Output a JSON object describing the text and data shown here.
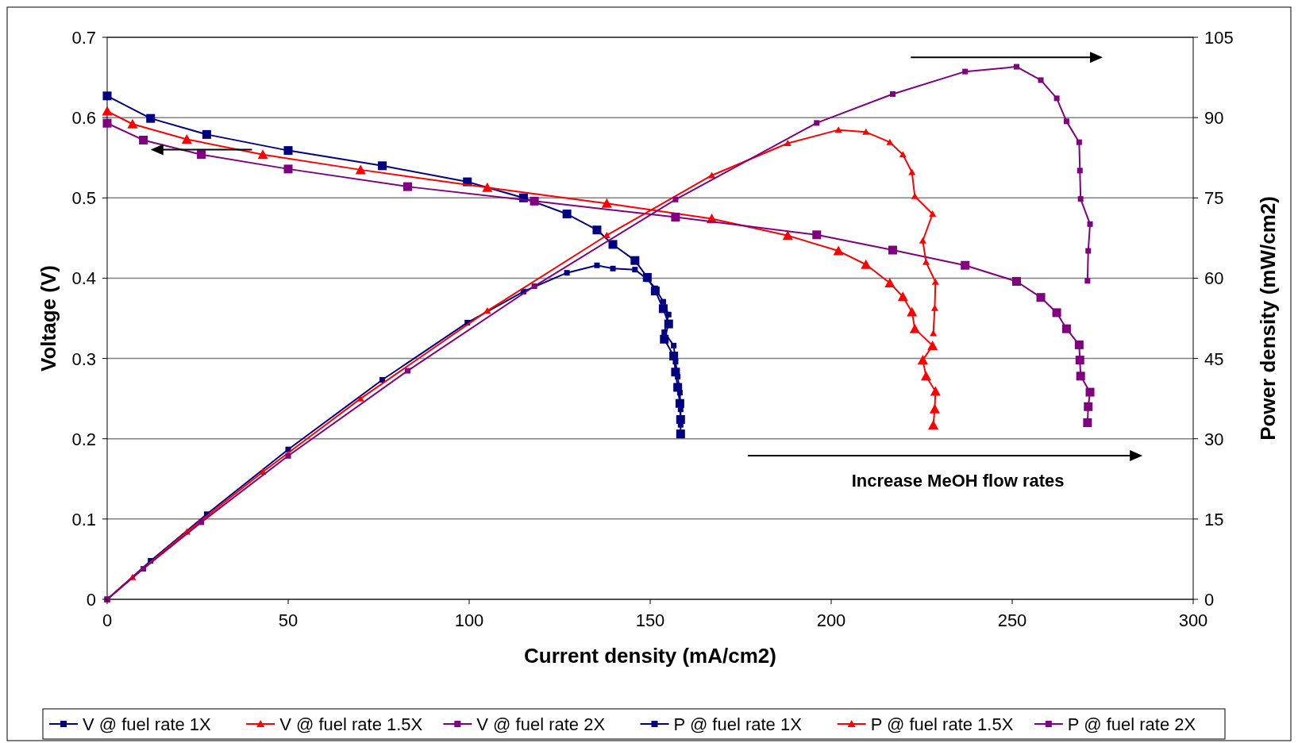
{
  "chart_data": {
    "type": "line",
    "xlabel": "Current density (mA/cm2)",
    "ylabel": "Voltage (V)",
    "y2label": "Power density (mW/cm2)",
    "xlim": [
      0,
      300
    ],
    "xticks": [
      0,
      50,
      100,
      150,
      200,
      250,
      300
    ],
    "ylim": [
      0,
      0.7
    ],
    "yticks": [
      0,
      0.1,
      0.2,
      0.3,
      0.4,
      0.5,
      0.6,
      0.7
    ],
    "y2lim": [
      0,
      105
    ],
    "y2ticks": [
      0,
      15,
      30,
      45,
      60,
      75,
      90,
      105
    ],
    "grid": "y",
    "legend": "bottom",
    "line_style": "solid",
    "annotations": [
      "Increase MeOH flow rates"
    ],
    "series": [
      {
        "name": "V @ fuel rate 1X",
        "color": "#000080",
        "marker": "square",
        "x": [
          0,
          12,
          27.5,
          50,
          76,
          99.5,
          115,
          127,
          135.3,
          139.7,
          145.8,
          149.2,
          151.4,
          153.6,
          155.1,
          153.9,
          156.5,
          157,
          157.6,
          158.2,
          158.4,
          158.4
        ],
        "values": [
          0.627,
          0.599,
          0.579,
          0.559,
          0.54,
          0.52,
          0.5,
          0.48,
          0.46,
          0.442,
          0.422,
          0.401,
          0.384,
          0.362,
          0.343,
          0.324,
          0.303,
          0.283,
          0.264,
          0.244,
          0.224,
          0.206
        ]
      },
      {
        "name": "V @ fuel rate 1.5X",
        "color": "#ff0000",
        "marker": "triangle",
        "x": [
          0,
          7,
          22,
          43,
          70,
          105,
          138,
          167,
          188,
          202,
          209.6,
          216.2,
          219.8,
          222.3,
          223.1,
          228,
          225.3,
          226.2,
          228.8,
          228.6,
          228.2
        ],
        "values": [
          0.608,
          0.592,
          0.573,
          0.554,
          0.535,
          0.513,
          0.493,
          0.474,
          0.453,
          0.434,
          0.417,
          0.394,
          0.377,
          0.358,
          0.337,
          0.316,
          0.298,
          0.278,
          0.259,
          0.237,
          0.217
        ]
      },
      {
        "name": "V @ fuel rate 2X",
        "color": "#800080",
        "marker": "square",
        "x": [
          0,
          10,
          26,
          50,
          83,
          118,
          157,
          196,
          217,
          237,
          251.2,
          257.9,
          262.3,
          265,
          268.5,
          268.7,
          268.9,
          271.5,
          271,
          270.8
        ],
        "values": [
          0.593,
          0.572,
          0.554,
          0.536,
          0.514,
          0.496,
          0.476,
          0.454,
          0.435,
          0.416,
          0.396,
          0.376,
          0.357,
          0.337,
          0.317,
          0.298,
          0.278,
          0.258,
          0.24,
          0.22
        ]
      },
      {
        "name": "P @ fuel rate 1X",
        "color": "#000080",
        "marker": "square",
        "axis": "y2",
        "x": [
          0,
          12,
          27.5,
          50,
          76,
          99.5,
          115,
          127,
          135.3,
          139.7,
          145.8,
          149.2,
          151.4,
          153.6,
          155.1,
          153.9,
          156.5,
          157,
          157.6,
          158.2,
          158.4,
          158.4
        ],
        "values": [
          0,
          7.2,
          15.9,
          28,
          41,
          51.7,
          57.5,
          61,
          62.4,
          61.8,
          61.6,
          59.8,
          58.1,
          55.6,
          53.2,
          49.9,
          47.4,
          44.4,
          41.6,
          38.6,
          35.5,
          32.6
        ]
      },
      {
        "name": "P @ fuel rate 1.5X",
        "color": "#ff0000",
        "marker": "triangle",
        "axis": "y2",
        "x": [
          0,
          7,
          22,
          43,
          70,
          105,
          138,
          167,
          188,
          202,
          209.6,
          216.2,
          219.8,
          222.3,
          223.1,
          228,
          225.3,
          226.2,
          228.8,
          228.6,
          228.2
        ],
        "values": [
          0,
          4.1,
          12.6,
          23.8,
          37.5,
          53.9,
          68,
          79.2,
          85.2,
          87.7,
          87.3,
          85.4,
          83.1,
          79.8,
          75.3,
          72,
          67,
          63,
          59.3,
          54.4,
          49.7
        ]
      },
      {
        "name": "P @ fuel rate 2X",
        "color": "#800080",
        "marker": "square",
        "axis": "y2",
        "x": [
          0,
          10,
          26,
          50,
          83,
          118,
          157,
          196,
          217,
          237,
          251.2,
          257.9,
          262.3,
          265,
          268.5,
          268.7,
          268.9,
          271.5,
          271,
          270.8
        ],
        "values": [
          0,
          5.7,
          14.4,
          26.8,
          42.7,
          58.5,
          74.7,
          89,
          94.4,
          98.6,
          99.5,
          97,
          93.6,
          89.3,
          85.4,
          80.1,
          74.8,
          70.1,
          65.1,
          59.5
        ]
      }
    ]
  }
}
